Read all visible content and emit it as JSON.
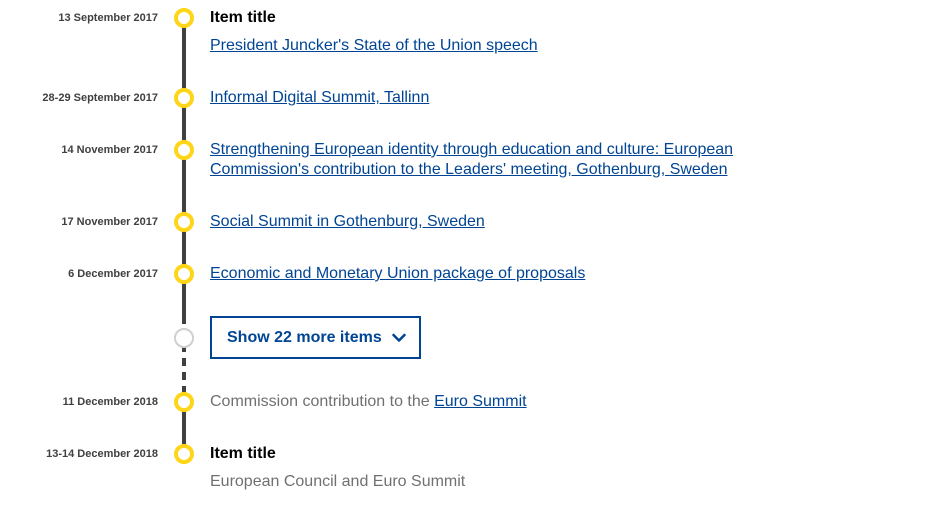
{
  "timeline": {
    "items": [
      {
        "date": "13 September 2017",
        "title": "Item title",
        "link": "President Juncker's State of the Union speech"
      },
      {
        "date": "28-29 September 2017",
        "link": "Informal Digital Summit, Tallinn"
      },
      {
        "date": "14 November 2017",
        "link_line1": "Strengthening European identity through education and culture: European",
        "link_line2": "Commission's contribution to the Leaders' meeting, Gothenburg, Sweden"
      },
      {
        "date": "17 November 2017",
        "link": "Social Summit in Gothenburg, Sweden"
      },
      {
        "date": "6 December 2017",
        "link": "Economic and Monetary Union package of proposals"
      },
      {
        "date": "11 December 2018",
        "text": "Commission contribution to the ",
        "link": "Euro Summit"
      },
      {
        "date": "13-14 December 2018",
        "title": "Item title",
        "text": "European Council and Euro Summit"
      }
    ],
    "show_more_label": "Show 22 more items",
    "show_more_icon": "chevron-down-icon"
  },
  "colors": {
    "accent": "#ffd617",
    "link": "#004494",
    "line": "#404040",
    "muted_dot": "#cfcfcf",
    "text": "#404040",
    "muted_text": "#707070"
  }
}
